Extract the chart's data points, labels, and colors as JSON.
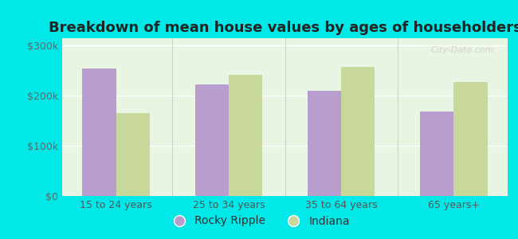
{
  "title": "Breakdown of mean house values by ages of householders",
  "categories": [
    "15 to 24 years",
    "25 to 34 years",
    "35 to 64 years",
    "65 years+"
  ],
  "rocky_ripple": [
    255000,
    222000,
    210000,
    168000
  ],
  "indiana": [
    165000,
    242000,
    258000,
    228000
  ],
  "bar_color_rr": "#b89ecf",
  "bar_color_in": "#c8d89a",
  "background_color": "#e8f5e2",
  "outer_background": "#00e8e8",
  "ylim": [
    0,
    315000
  ],
  "yticks": [
    0,
    100000,
    200000,
    300000
  ],
  "ytick_labels": [
    "$0",
    "$100k",
    "$200k",
    "$300k"
  ],
  "legend_labels": [
    "Rocky Ripple",
    "Indiana"
  ],
  "title_fontsize": 13,
  "tick_fontsize": 9,
  "legend_fontsize": 10
}
